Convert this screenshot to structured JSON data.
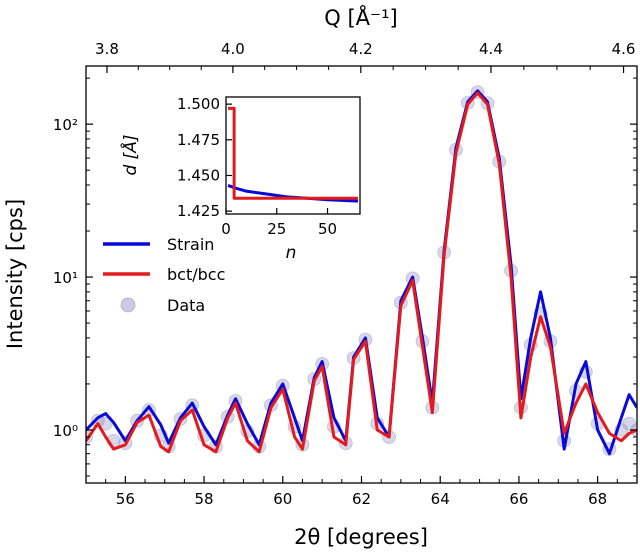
{
  "chart_data": {
    "type": "line",
    "xlabel": "2θ [degrees]",
    "ylabel": "Intensity [cps]",
    "top_xlabel": "Q [Å⁻¹]",
    "xlim": [
      55,
      69
    ],
    "ylim": [
      0.45,
      240
    ],
    "yscale": "log",
    "xticks": [
      56,
      58,
      60,
      62,
      64,
      66,
      68
    ],
    "xtick_labels": [
      "56",
      "58",
      "60",
      "62",
      "64",
      "66",
      "68"
    ],
    "yticks": [
      1,
      10,
      100
    ],
    "ytick_labels": [
      "10⁰",
      "10¹",
      "10²"
    ],
    "top_ticks": [
      3.8,
      4.0,
      4.2,
      4.4,
      4.6
    ],
    "top_tick_labels": [
      "3.8",
      "4.0",
      "4.2",
      "4.4",
      "4.6"
    ],
    "legend_position": "center-left",
    "series": [
      {
        "name": "Strain",
        "color": "#0a0ad8",
        "style": "line",
        "x": [
          55.0,
          55.3,
          55.5,
          55.7,
          56.0,
          56.3,
          56.6,
          56.9,
          57.1,
          57.4,
          57.7,
          58.0,
          58.3,
          58.6,
          58.8,
          59.1,
          59.4,
          59.7,
          60.0,
          60.3,
          60.5,
          60.8,
          61.0,
          61.3,
          61.6,
          61.8,
          62.1,
          62.4,
          62.7,
          63.0,
          63.3,
          63.55,
          63.8,
          64.1,
          64.4,
          64.7,
          64.95,
          65.2,
          65.5,
          65.8,
          66.05,
          66.3,
          66.55,
          66.8,
          67.15,
          67.45,
          67.7,
          68.0,
          68.3,
          68.6,
          68.8,
          69.0
        ],
        "values": [
          1.0,
          1.2,
          1.28,
          1.12,
          0.85,
          1.15,
          1.42,
          1.08,
          0.82,
          1.2,
          1.5,
          1.05,
          0.8,
          1.25,
          1.6,
          1.1,
          0.8,
          1.5,
          2.0,
          1.2,
          0.85,
          2.2,
          2.8,
          1.2,
          0.85,
          3.0,
          4.0,
          1.2,
          0.9,
          7.0,
          10.0,
          4.0,
          1.5,
          15.0,
          70.0,
          140.0,
          165.0,
          140.0,
          60.0,
          12.0,
          1.6,
          4.0,
          8.0,
          4.0,
          0.75,
          2.0,
          2.8,
          1.0,
          0.7,
          1.2,
          1.7,
          1.4
        ]
      },
      {
        "name": "bct/bcc",
        "color": "#e41a1c",
        "style": "line",
        "x": [
          55.0,
          55.3,
          55.5,
          55.7,
          56.0,
          56.3,
          56.6,
          56.9,
          57.1,
          57.4,
          57.7,
          58.0,
          58.3,
          58.6,
          58.8,
          59.1,
          59.4,
          59.7,
          60.0,
          60.3,
          60.5,
          60.8,
          61.0,
          61.3,
          61.6,
          61.8,
          62.1,
          62.4,
          62.7,
          63.0,
          63.3,
          63.55,
          63.8,
          64.1,
          64.4,
          64.7,
          64.95,
          65.2,
          65.5,
          65.8,
          66.05,
          66.3,
          66.55,
          66.8,
          67.15,
          67.45,
          67.7,
          68.0,
          68.3,
          68.6,
          68.8,
          69.0
        ],
        "values": [
          0.85,
          1.1,
          0.9,
          0.75,
          0.8,
          1.12,
          1.25,
          0.78,
          0.72,
          1.15,
          1.35,
          0.8,
          0.72,
          1.2,
          1.5,
          0.85,
          0.72,
          1.4,
          1.85,
          0.9,
          0.75,
          2.1,
          2.6,
          0.9,
          0.8,
          2.9,
          3.8,
          1.0,
          0.9,
          6.5,
          9.5,
          3.5,
          1.3,
          14.0,
          65.0,
          135.0,
          160.0,
          135.0,
          55.0,
          10.0,
          1.2,
          3.0,
          5.5,
          3.5,
          0.95,
          1.5,
          2.0,
          1.3,
          0.95,
          0.85,
          0.95,
          1.0
        ]
      },
      {
        "name": "Data",
        "color": "#8c8cc0",
        "style": "scatter",
        "x": [
          55.0,
          55.3,
          55.5,
          55.7,
          56.0,
          56.3,
          56.6,
          56.9,
          57.1,
          57.4,
          57.7,
          58.0,
          58.3,
          58.6,
          58.8,
          59.1,
          59.4,
          59.7,
          60.0,
          60.3,
          60.5,
          60.8,
          61.0,
          61.3,
          61.6,
          61.8,
          62.1,
          62.4,
          62.7,
          63.0,
          63.3,
          63.55,
          63.8,
          64.1,
          64.4,
          64.7,
          64.95,
          65.2,
          65.5,
          65.8,
          66.05,
          66.3,
          66.55,
          66.8,
          67.15,
          67.45,
          67.7,
          68.0,
          68.3,
          68.6,
          68.8,
          69.0
        ],
        "values": [
          0.9,
          1.15,
          1.1,
          0.85,
          0.82,
          1.15,
          1.35,
          0.92,
          0.78,
          1.18,
          1.45,
          0.92,
          0.78,
          1.22,
          1.55,
          0.98,
          0.78,
          1.45,
          1.95,
          1.05,
          0.8,
          2.15,
          2.7,
          1.05,
          0.82,
          2.95,
          3.9,
          1.1,
          0.9,
          6.8,
          9.8,
          3.8,
          1.4,
          14.5,
          68.0,
          138.0,
          162.0,
          137.0,
          57.0,
          11.0,
          1.4,
          3.6,
          5.8,
          3.8,
          0.85,
          1.8,
          2.4,
          1.1,
          0.75,
          1.0,
          1.1,
          1.0
        ]
      }
    ],
    "inset": {
      "type": "line",
      "xlabel": "n",
      "ylabel": "d [Å]",
      "xlim": [
        0,
        66
      ],
      "ylim": [
        1.423,
        1.505
      ],
      "xticks": [
        0,
        25,
        50
      ],
      "xtick_labels": [
        "0",
        "25",
        "50"
      ],
      "yticks": [
        1.425,
        1.45,
        1.475,
        1.5
      ],
      "ytick_labels": [
        "1.425",
        "1.450",
        "1.475",
        "1.500"
      ],
      "series": [
        {
          "name": "Strain",
          "color": "#0a0ad8",
          "x": [
            1,
            5,
            10,
            20,
            30,
            40,
            50,
            65
          ],
          "values": [
            1.443,
            1.441,
            1.439,
            1.437,
            1.435,
            1.434,
            1.433,
            1.432
          ]
        },
        {
          "name": "bct/bcc",
          "color": "#e41a1c",
          "x": [
            1,
            4,
            4,
            65
          ],
          "values": [
            1.497,
            1.497,
            1.434,
            1.434
          ]
        }
      ]
    }
  }
}
